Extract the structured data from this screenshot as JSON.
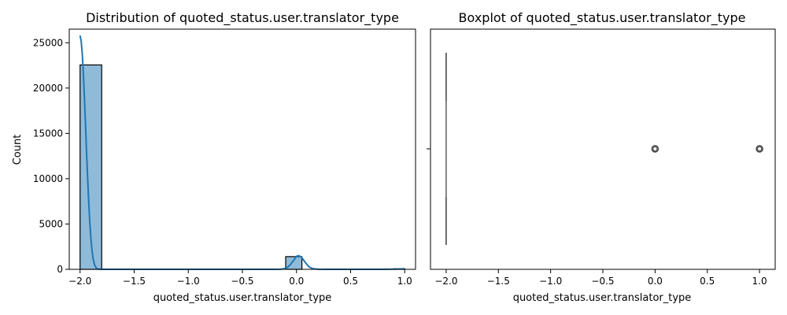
{
  "chart_data": [
    {
      "type": "histogram",
      "title": "Distribution of quoted_status.user.translator_type",
      "xlabel": "quoted_status.user.translator_type",
      "ylabel": "Count",
      "xlim": [
        -2.1,
        1.1
      ],
      "ylim": [
        0,
        26500
      ],
      "xticks": [
        -2.0,
        -1.5,
        -1.0,
        -0.5,
        0.0,
        0.5,
        1.0
      ],
      "xtick_labels": [
        "−2.0",
        "−1.5",
        "−1.0",
        "−0.5",
        "0.0",
        "0.5",
        "1.0"
      ],
      "yticks": [
        0,
        5000,
        10000,
        15000,
        20000,
        25000
      ],
      "ytick_labels": [
        "0",
        "5000",
        "10000",
        "15000",
        "20000",
        "25000"
      ],
      "bins": [
        {
          "x0": -2.0,
          "x1": -1.8,
          "count": 22550
        },
        {
          "x0": -0.1,
          "x1": 0.05,
          "count": 1400
        },
        {
          "x0": 0.9,
          "x1": 1.0,
          "count": 60
        }
      ],
      "kde": {
        "x": [
          -2.0,
          -1.99,
          -1.98,
          -1.97,
          -1.96,
          -1.95,
          -1.94,
          -1.93,
          -1.92,
          -1.91,
          -1.9,
          -1.89,
          -1.88,
          -1.87,
          -1.86,
          -1.85,
          -1.84,
          -1.83,
          -1.82,
          -1.8,
          -1.78,
          -1.75,
          -1.7,
          -1.6,
          -1.5,
          -1.4,
          -1.3,
          -1.2,
          -1.1,
          -1.0,
          -0.9,
          -0.8,
          -0.7,
          -0.6,
          -0.5,
          -0.4,
          -0.3,
          -0.2,
          -0.15,
          -0.12,
          -0.1,
          -0.08,
          -0.06,
          -0.04,
          -0.02,
          0.0,
          0.02,
          0.04,
          0.06,
          0.08,
          0.1,
          0.12,
          0.15,
          0.2,
          0.3,
          0.4,
          0.5,
          0.6,
          0.7,
          0.8,
          0.9,
          0.95,
          1.0
        ],
        "y": [
          25800,
          25200,
          23800,
          21700,
          19000,
          16000,
          12900,
          10000,
          7400,
          5200,
          3400,
          2100,
          1200,
          650,
          330,
          150,
          70,
          30,
          12,
          3,
          1,
          0,
          0,
          0,
          0,
          0,
          0,
          0,
          0,
          0,
          0,
          0,
          0,
          0,
          0,
          0,
          0,
          0,
          15,
          55,
          110,
          250,
          480,
          780,
          1100,
          1430,
          1500,
          1400,
          1120,
          780,
          480,
          240,
          80,
          10,
          0,
          0,
          0,
          0,
          0,
          5,
          25,
          45,
          60
        ]
      },
      "bar_color": "#1f77b4",
      "bar_opacity": 0.5,
      "line_color": "#1f77b4"
    },
    {
      "type": "boxplot",
      "title": "Boxplot of quoted_status.user.translator_type",
      "xlabel": "quoted_status.user.translator_type",
      "xlim": [
        -2.15,
        1.15
      ],
      "xticks": [
        -2.0,
        -1.5,
        -1.0,
        -0.5,
        0.0,
        0.5,
        1.0
      ],
      "xtick_labels": [
        "−2.0",
        "−1.5",
        "−1.0",
        "−0.5",
        "0.0",
        "0.5",
        "1.0"
      ],
      "box": {
        "q1": -2.0,
        "median": -2.0,
        "q3": -2.0,
        "whisker_low": -2.0,
        "whisker_high": -2.0
      },
      "outliers": [
        0.0,
        1.0
      ],
      "color": "#1f77b4"
    }
  ]
}
